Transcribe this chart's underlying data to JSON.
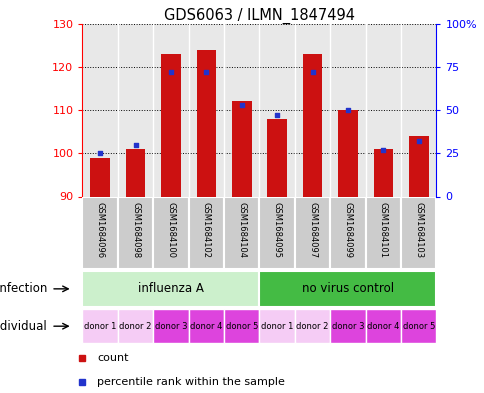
{
  "title": "GDS6063 / ILMN_1847494",
  "samples": [
    "GSM1684096",
    "GSM1684098",
    "GSM1684100",
    "GSM1684102",
    "GSM1684104",
    "GSM1684095",
    "GSM1684097",
    "GSM1684099",
    "GSM1684101",
    "GSM1684103"
  ],
  "counts": [
    99,
    101,
    123,
    124,
    112,
    108,
    123,
    110,
    101,
    104
  ],
  "percentiles": [
    25,
    30,
    72,
    72,
    53,
    47,
    72,
    50,
    27,
    32
  ],
  "ylim_left": [
    90,
    130
  ],
  "ylim_right": [
    0,
    100
  ],
  "yticks_left": [
    90,
    100,
    110,
    120,
    130
  ],
  "yticks_right": [
    0,
    25,
    50,
    75,
    100
  ],
  "bar_color": "#cc1111",
  "dot_color": "#2233cc",
  "bar_bottom": 90,
  "bar_width": 0.55,
  "plot_bg_color": "#e8e8e8",
  "inf_colors": [
    "#ccf0cc",
    "#44bb44"
  ],
  "inf_labels": [
    "influenza A",
    "no virus control"
  ],
  "individual_labels": [
    "donor 1",
    "donor 2",
    "donor 3",
    "donor 4",
    "donor 5",
    "donor 1",
    "donor 2",
    "donor 3",
    "donor 4",
    "donor 5"
  ],
  "donor_colors": [
    "#f5ccf5",
    "#f5ccf5",
    "#dd44dd",
    "#dd44dd",
    "#dd44dd",
    "#f5ccf5",
    "#f5ccf5",
    "#dd44dd",
    "#dd44dd",
    "#dd44dd"
  ],
  "sample_box_color": "#cccccc"
}
